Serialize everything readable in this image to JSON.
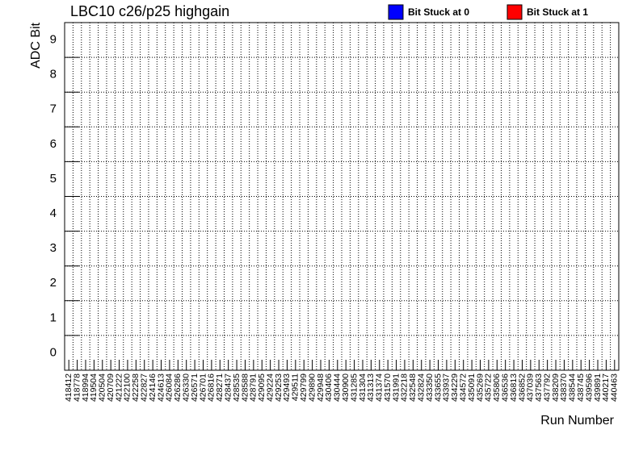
{
  "chart_data": {
    "type": "heatmap",
    "title": "LBC10 c26/p25 highgain",
    "x_label": "Run Number",
    "y_label": "ADC Bit",
    "categories": [
      "418412",
      "418778",
      "418994",
      "419504",
      "420504",
      "420709",
      "421222",
      "422100",
      "422258",
      "422827",
      "424146",
      "424613",
      "426084",
      "426286",
      "426330",
      "426571",
      "426701",
      "426816",
      "428271",
      "428437",
      "428535",
      "428588",
      "428791",
      "429095",
      "429224",
      "429253",
      "429493",
      "429511",
      "429799",
      "429890",
      "429948",
      "430406",
      "430444",
      "430900",
      "431285",
      "431304",
      "431313",
      "431374",
      "431570",
      "431991",
      "432218",
      "432548",
      "432824",
      "433350",
      "433655",
      "433937",
      "434229",
      "434572",
      "435091",
      "435269",
      "435722",
      "435806",
      "436536",
      "436813",
      "436852",
      "437039",
      "437563",
      "437792",
      "438209",
      "438370",
      "438544",
      "438745",
      "439596",
      "439891",
      "440217",
      "440463"
    ],
    "ylim": [
      -0.5,
      9.5
    ],
    "yticks": [
      0,
      1,
      2,
      3,
      4,
      5,
      6,
      7,
      8,
      9
    ],
    "grid": true,
    "legend": [
      {
        "name": "Bit Stuck at 0",
        "color": "#0000ff"
      },
      {
        "name": "Bit Stuck at 1",
        "color": "#ff0000"
      }
    ]
  }
}
